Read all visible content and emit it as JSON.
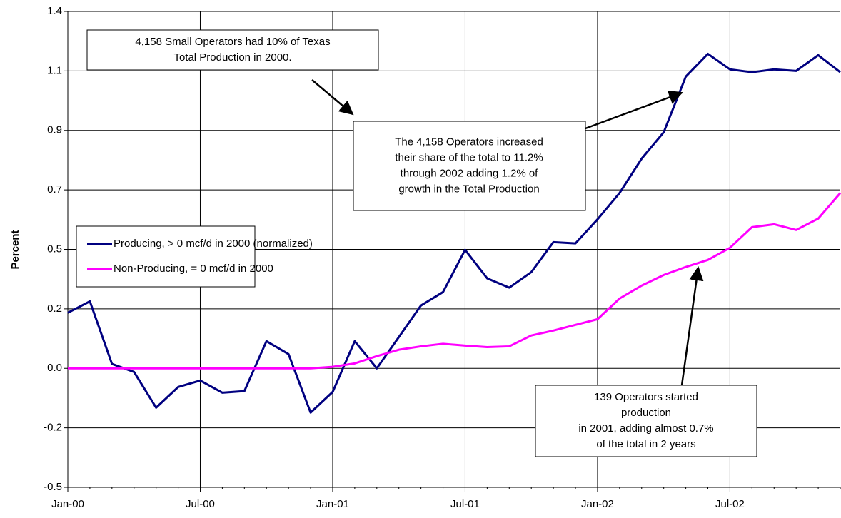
{
  "chart_data": {
    "type": "line",
    "y_label": "Percent",
    "categories": [
      "Jan-00",
      null,
      null,
      null,
      null,
      null,
      "Jul-00",
      null,
      null,
      null,
      null,
      null,
      "Jan-01",
      null,
      null,
      null,
      null,
      null,
      "Jul-01",
      null,
      null,
      null,
      null,
      null,
      "Jan-02",
      null,
      null,
      null,
      null,
      null,
      "Jul-02",
      null,
      null,
      null,
      null,
      null
    ],
    "series": [
      {
        "name": "Producing, > 0 mcf/d in 2000 (normalized)",
        "color": "#000080",
        "values": [
          0.215,
          0.259,
          0.017,
          -0.014,
          -0.152,
          -0.072,
          -0.047,
          -0.094,
          -0.088,
          0.105,
          0.055,
          -0.171,
          -0.091,
          0.105,
          0,
          0.121,
          0.243,
          0.295,
          0.458,
          0.348,
          0.312,
          0.372,
          0.488,
          0.483,
          0.576,
          0.678,
          0.811,
          0.913,
          1.128,
          1.216,
          1.156,
          1.145,
          1.156,
          1.15,
          1.211,
          1.145
        ]
      },
      {
        "name": "Non-Producing, = 0 mcf/d in 2000",
        "color": "#ff00ff",
        "values": [
          0,
          0,
          0,
          0,
          0,
          0,
          0,
          0,
          0,
          0,
          0,
          0,
          0.006,
          0.019,
          0.047,
          0.072,
          0.085,
          0.095,
          0.088,
          0.082,
          0.085,
          0.127,
          0.146,
          0.168,
          0.19,
          0.27,
          0.32,
          0.361,
          0.392,
          0.419,
          0.466,
          0.546,
          0.557,
          0.535,
          0.579,
          0.678
        ]
      }
    ],
    "ylim": [
      -0.46,
      1.38
    ],
    "yticks": [
      {
        "value": -0.46,
        "label": "-0.5"
      },
      {
        "value": -0.23,
        "label": "-0.2"
      },
      {
        "value": 0,
        "label": "0.0"
      },
      {
        "value": 0.23,
        "label": "0.2"
      },
      {
        "value": 0.46,
        "label": "0.5"
      },
      {
        "value": 0.69,
        "label": "0.7"
      },
      {
        "value": 0.92,
        "label": "0.9"
      },
      {
        "value": 1.15,
        "label": "1.1"
      },
      {
        "value": 1.38,
        "label": "1.4"
      }
    ],
    "grid": true,
    "legend": "left",
    "annotations": [
      [
        "4,158 Small Operators had 10% of Texas",
        "Total Production in 2000."
      ],
      [
        "The 4,158 Operators increased",
        "their share of the total to 11.2%",
        "through 2002 adding 1.2% of",
        "growth in the Total Production"
      ],
      [
        "139 Operators started",
        "production",
        "in 2001, adding almost 0.7%",
        "of the total in 2 years"
      ]
    ]
  }
}
